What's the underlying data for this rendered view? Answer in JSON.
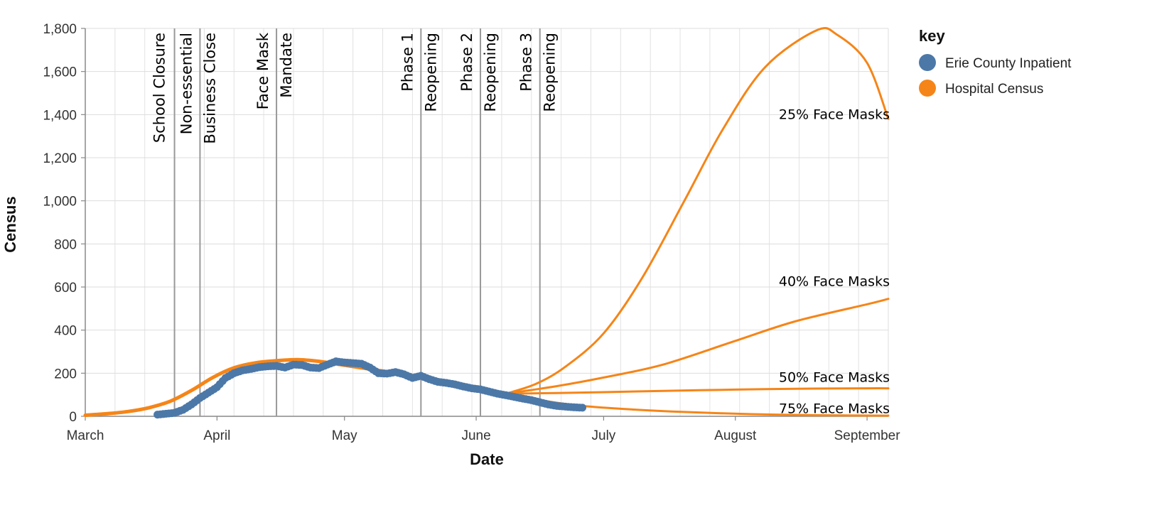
{
  "chart_data": {
    "type": "line",
    "xlabel": "Date",
    "ylabel": "Census",
    "ylim": [
      0,
      1800
    ],
    "xlim": [
      "2020-03-01",
      "2020-09-06"
    ],
    "x_ticks": [
      {
        "date": "2020-03-01",
        "label": "March"
      },
      {
        "date": "2020-04-01",
        "label": "April"
      },
      {
        "date": "2020-05-01",
        "label": "May"
      },
      {
        "date": "2020-06-01",
        "label": "June"
      },
      {
        "date": "2020-07-01",
        "label": "July"
      },
      {
        "date": "2020-08-01",
        "label": "August"
      },
      {
        "date": "2020-09-01",
        "label": "September"
      }
    ],
    "y_ticks": [
      {
        "value": 0,
        "label": "0"
      },
      {
        "value": 200,
        "label": "200"
      },
      {
        "value": 400,
        "label": "400"
      },
      {
        "value": 600,
        "label": "600"
      },
      {
        "value": 800,
        "label": "800"
      },
      {
        "value": 1000,
        "label": "1,000"
      },
      {
        "value": 1200,
        "label": "1,200"
      },
      {
        "value": 1400,
        "label": "1,400"
      },
      {
        "value": 1600,
        "label": "1,600"
      },
      {
        "value": 1800,
        "label": "1,800"
      }
    ],
    "grid": true,
    "legend": {
      "title": "key",
      "placement": "top-right",
      "entries": [
        {
          "label": "Erie County Inpatient",
          "color": "#4c78a8"
        },
        {
          "label": "Hospital Census",
          "color": "#f58518"
        }
      ]
    },
    "events": [
      {
        "date": "2020-03-22",
        "lines": [
          "School Closure"
        ]
      },
      {
        "date": "2020-03-28",
        "lines": [
          "Non-essential",
          "Business Close"
        ]
      },
      {
        "date": "2020-04-15",
        "lines": [
          "Face Mask",
          "Mandate"
        ]
      },
      {
        "date": "2020-05-19",
        "lines": [
          "Phase 1",
          "Reopening"
        ]
      },
      {
        "date": "2020-06-02",
        "lines": [
          "Phase 2",
          "Reopening"
        ]
      },
      {
        "date": "2020-06-16",
        "lines": [
          "Phase 3",
          "Reopening"
        ]
      }
    ],
    "series": [
      {
        "name": "Erie County Inpatient",
        "kind": "points",
        "color": "#4c78a8",
        "points": [
          [
            "2020-03-18",
            8
          ],
          [
            "2020-03-20",
            12
          ],
          [
            "2020-03-22",
            16
          ],
          [
            "2020-03-24",
            30
          ],
          [
            "2020-03-26",
            55
          ],
          [
            "2020-03-28",
            85
          ],
          [
            "2020-03-30",
            110
          ],
          [
            "2020-04-01",
            135
          ],
          [
            "2020-04-03",
            178
          ],
          [
            "2020-04-05",
            200
          ],
          [
            "2020-04-07",
            213
          ],
          [
            "2020-04-09",
            220
          ],
          [
            "2020-04-11",
            228
          ],
          [
            "2020-04-13",
            232
          ],
          [
            "2020-04-15",
            234
          ],
          [
            "2020-04-17",
            226
          ],
          [
            "2020-04-19",
            240
          ],
          [
            "2020-04-21",
            238
          ],
          [
            "2020-04-23",
            226
          ],
          [
            "2020-04-25",
            224
          ],
          [
            "2020-04-27",
            240
          ],
          [
            "2020-04-29",
            255
          ],
          [
            "2020-05-01",
            250
          ],
          [
            "2020-05-03",
            247
          ],
          [
            "2020-05-05",
            244
          ],
          [
            "2020-05-07",
            226
          ],
          [
            "2020-05-09",
            200
          ],
          [
            "2020-05-11",
            198
          ],
          [
            "2020-05-13",
            205
          ],
          [
            "2020-05-15",
            195
          ],
          [
            "2020-05-17",
            178
          ],
          [
            "2020-05-19",
            188
          ],
          [
            "2020-05-21",
            172
          ],
          [
            "2020-05-23",
            160
          ],
          [
            "2020-05-25",
            155
          ],
          [
            "2020-05-27",
            148
          ],
          [
            "2020-05-29",
            138
          ],
          [
            "2020-05-31",
            130
          ],
          [
            "2020-06-02",
            125
          ],
          [
            "2020-06-04",
            115
          ],
          [
            "2020-06-06",
            105
          ],
          [
            "2020-06-08",
            98
          ],
          [
            "2020-06-10",
            90
          ],
          [
            "2020-06-12",
            82
          ],
          [
            "2020-06-14",
            75
          ],
          [
            "2020-06-16",
            65
          ],
          [
            "2020-06-18",
            55
          ],
          [
            "2020-06-20",
            48
          ],
          [
            "2020-06-22",
            45
          ],
          [
            "2020-06-24",
            42
          ],
          [
            "2020-06-26",
            40
          ]
        ]
      },
      {
        "name": "Hospital Census",
        "kind": "line",
        "color": "#f58518",
        "points": [
          [
            "2020-03-01",
            5
          ],
          [
            "2020-03-06",
            12
          ],
          [
            "2020-03-11",
            22
          ],
          [
            "2020-03-16",
            40
          ],
          [
            "2020-03-21",
            70
          ],
          [
            "2020-03-26",
            120
          ],
          [
            "2020-03-31",
            180
          ],
          [
            "2020-04-05",
            225
          ],
          [
            "2020-04-10",
            248
          ],
          [
            "2020-04-15",
            258
          ],
          [
            "2020-04-20",
            263
          ],
          [
            "2020-04-25",
            255
          ],
          [
            "2020-04-30",
            240
          ],
          [
            "2020-05-05",
            225
          ],
          [
            "2020-05-10",
            210
          ],
          [
            "2020-05-15",
            195
          ],
          [
            "2020-05-20",
            180
          ],
          [
            "2020-05-25",
            162
          ],
          [
            "2020-05-30",
            140
          ],
          [
            "2020-06-04",
            120
          ],
          [
            "2020-06-08",
            105
          ]
        ]
      }
    ],
    "scenarios": [
      {
        "label": "25% Face Masks",
        "color": "#f58518",
        "points": [
          [
            "2020-06-08",
            105
          ],
          [
            "2020-06-15",
            150
          ],
          [
            "2020-06-22",
            230
          ],
          [
            "2020-07-01",
            385
          ],
          [
            "2020-07-10",
            640
          ],
          [
            "2020-07-20",
            1000
          ],
          [
            "2020-07-29",
            1330
          ],
          [
            "2020-08-08",
            1620
          ],
          [
            "2020-08-20",
            1790
          ],
          [
            "2020-08-25",
            1770
          ],
          [
            "2020-09-01",
            1640
          ],
          [
            "2020-09-06",
            1380
          ]
        ]
      },
      {
        "label": "40% Face Masks",
        "color": "#f58518",
        "points": [
          [
            "2020-06-08",
            105
          ],
          [
            "2020-06-20",
            140
          ],
          [
            "2020-07-01",
            180
          ],
          [
            "2020-07-15",
            240
          ],
          [
            "2020-08-01",
            350
          ],
          [
            "2020-08-15",
            440
          ],
          [
            "2020-09-01",
            520
          ],
          [
            "2020-09-06",
            545
          ]
        ]
      },
      {
        "label": "50% Face Masks",
        "color": "#f58518",
        "points": [
          [
            "2020-06-08",
            105
          ],
          [
            "2020-06-20",
            108
          ],
          [
            "2020-07-01",
            112
          ],
          [
            "2020-07-15",
            118
          ],
          [
            "2020-08-01",
            124
          ],
          [
            "2020-08-15",
            128
          ],
          [
            "2020-09-01",
            130
          ],
          [
            "2020-09-06",
            130
          ]
        ]
      },
      {
        "label": "75% Face Masks",
        "color": "#f58518",
        "points": [
          [
            "2020-06-08",
            105
          ],
          [
            "2020-06-16",
            75
          ],
          [
            "2020-06-25",
            50
          ],
          [
            "2020-07-05",
            35
          ],
          [
            "2020-07-20",
            20
          ],
          [
            "2020-08-05",
            10
          ],
          [
            "2020-08-20",
            5
          ],
          [
            "2020-09-06",
            3
          ]
        ]
      }
    ]
  }
}
